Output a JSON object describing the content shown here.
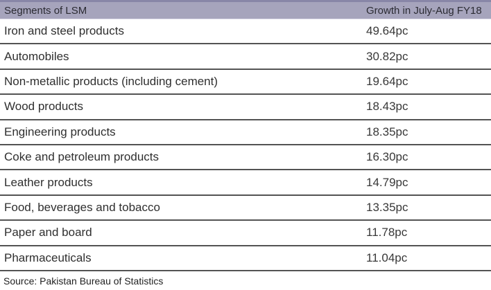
{
  "chart_data": {
    "type": "table",
    "title": "",
    "columns": [
      "Segments of LSM",
      "Growth in July-Aug FY18"
    ],
    "categories": [
      "Iron and steel products",
      "Automobiles",
      "Non-metallic products (including cement)",
      "Wood products",
      "Engineering products",
      "Coke and petroleum products",
      "Leather products",
      "Food, beverages and tobacco",
      "Paper and board",
      "Pharmaceuticals"
    ],
    "values": [
      49.64,
      30.82,
      19.64,
      18.43,
      18.35,
      16.3,
      14.79,
      13.35,
      11.78,
      11.04
    ],
    "unit": "pc",
    "source": "Source: Pakistan Bureau of Statistics"
  },
  "table": {
    "header": {
      "segment": "Segments of LSM",
      "growth": "Growth in July-Aug FY18"
    },
    "rows": [
      {
        "segment": "Iron and steel products",
        "growth": "49.64pc"
      },
      {
        "segment": "Automobiles",
        "growth": "30.82pc"
      },
      {
        "segment": "Non-metallic products (including cement)",
        "growth": "19.64pc"
      },
      {
        "segment": "Wood products",
        "growth": "18.43pc"
      },
      {
        "segment": "Engineering products",
        "growth": "18.35pc"
      },
      {
        "segment": "Coke and petroleum products",
        "growth": "16.30pc"
      },
      {
        "segment": "Leather products",
        "growth": "14.79pc"
      },
      {
        "segment": "Food, beverages and tobacco",
        "growth": "13.35pc"
      },
      {
        "segment": "Paper and board",
        "growth": "11.78pc"
      },
      {
        "segment": "Pharmaceuticals",
        "growth": "11.04pc"
      }
    ],
    "source": "Source: Pakistan Bureau of Statistics"
  },
  "colors": {
    "header_bg": "#a6a4bc",
    "header_top_edge": "#8886a7",
    "separator": "#535353",
    "row_text": "#2f2f2f"
  }
}
